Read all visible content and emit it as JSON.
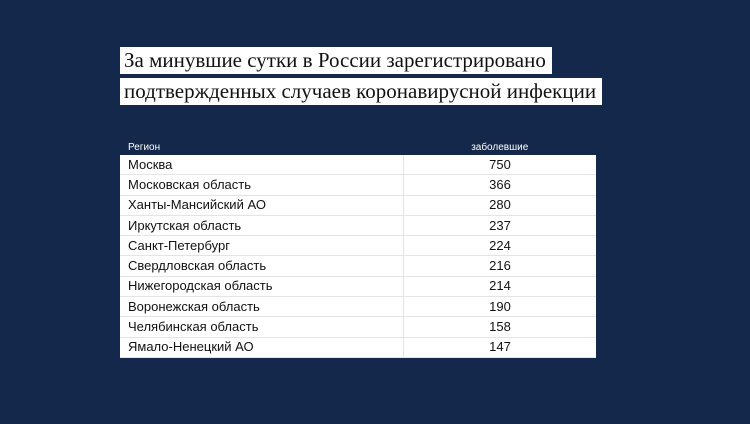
{
  "header": {
    "title": [
      "За минувшие сутки в России зарегистрировано",
      "подтвержденных случаев коронавирусной инфекции"
    ]
  },
  "table": {
    "columns": [
      "Регион",
      "заболевшие"
    ],
    "rows": [
      [
        "Москва",
        750
      ],
      [
        "Московская область",
        366
      ],
      [
        "Ханты-Мансийский АО",
        280
      ],
      [
        "Иркутская область",
        237
      ],
      [
        "Санкт-Петербург",
        224
      ],
      [
        "Свердловская область",
        216
      ],
      [
        "Нижегородская область",
        214
      ],
      [
        "Воронежская область",
        190
      ],
      [
        "Челябинская область",
        158
      ],
      [
        "Ямало-Ненецкий АО",
        147
      ]
    ]
  }
}
